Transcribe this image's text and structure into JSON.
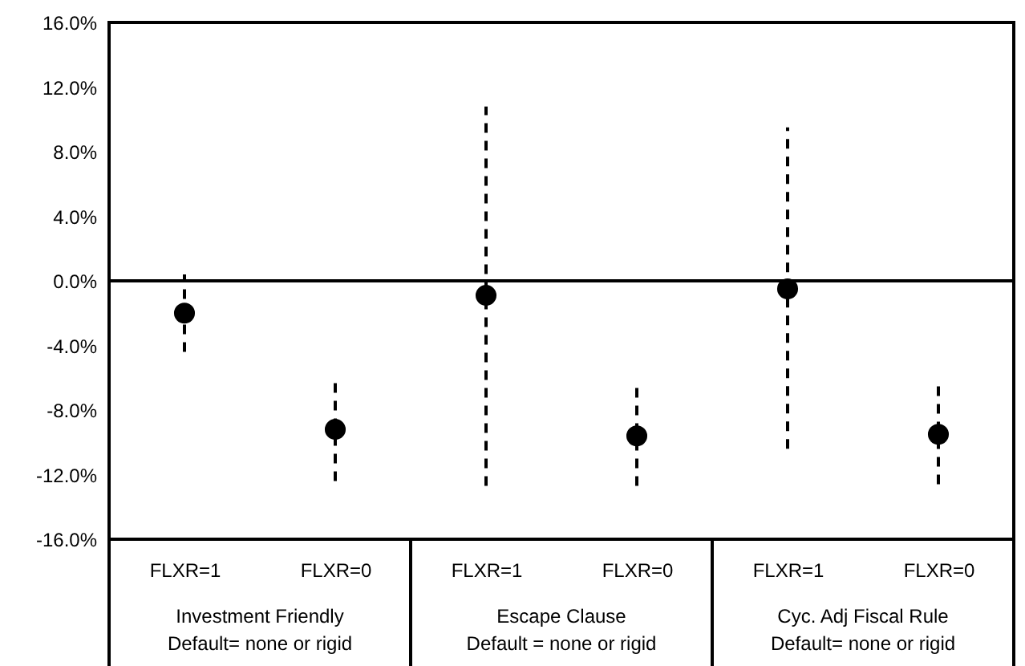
{
  "chart_data": {
    "type": "scatter",
    "categories": [
      "FLXR=1",
      "FLXR=0",
      "FLXR=1",
      "FLXR=0",
      "FLXR=1",
      "FLXR=0"
    ],
    "values": [
      -2.0,
      -9.2,
      -0.9,
      -9.6,
      -0.5,
      -9.5
    ],
    "errors": [
      [
        -4.4,
        0.4
      ],
      [
        -12.4,
        -6.3
      ],
      [
        -12.7,
        10.8
      ],
      [
        -12.7,
        -6.5
      ],
      [
        -10.4,
        9.5
      ],
      [
        -12.6,
        -6.4
      ]
    ],
    "color": "#000000",
    "marker": "circle",
    "ylim": [
      -16,
      16
    ],
    "yticks": [
      {
        "value": -16,
        "label": "-16.0%"
      },
      {
        "value": -12,
        "label": "-12.0%"
      },
      {
        "value": -8,
        "label": "-8.0%"
      },
      {
        "value": -4,
        "label": "-4.0%"
      },
      {
        "value": 0,
        "label": "0.0%"
      },
      {
        "value": 4,
        "label": "4.0%"
      },
      {
        "value": 8,
        "label": "8.0%"
      },
      {
        "value": 12,
        "label": "12.0%"
      },
      {
        "value": 16,
        "label": "16.0%"
      }
    ],
    "ref_lines": [
      {
        "axis": "y",
        "value": 0,
        "color": "#000000"
      }
    ],
    "annotations": [
      "Investment Friendly\nDefault= none or rigid",
      "Escape Clause\nDefault = none or rigid",
      "Cyc. Adj Fiscal Rule\nDefault=  none or rigid"
    ],
    "grid": false
  }
}
